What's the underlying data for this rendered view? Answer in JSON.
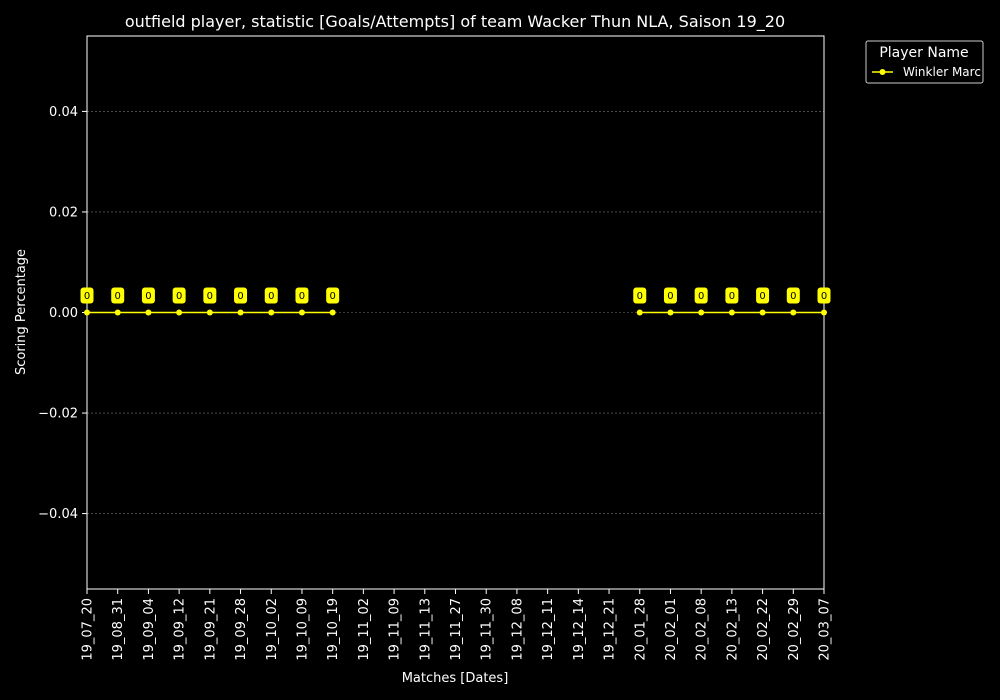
{
  "chart_data": {
    "type": "line",
    "title": "outfield player, statistic [Goals/Attempts] of team Wacker Thun NLA, Saison 19_20",
    "xlabel": "Matches [Dates]",
    "ylabel": "Scoring Percentage",
    "ylim": [
      -0.055,
      0.055
    ],
    "yticks": [
      0.04,
      0.02,
      0.0,
      -0.02,
      -0.04
    ],
    "ytick_labels": [
      "0.04",
      "0.02",
      "0.00",
      "−0.02",
      "−0.04"
    ],
    "grid": "y",
    "legend": {
      "title": "Player Name",
      "placement": "outside-top-right"
    },
    "categories": [
      "19_07_20",
      "19_08_31",
      "19_09_04",
      "19_09_12",
      "19_09_21",
      "19_09_28",
      "19_10_02",
      "19_10_09",
      "19_10_19",
      "19_11_02",
      "19_11_09",
      "19_11_13",
      "19_11_27",
      "19_11_30",
      "19_12_08",
      "19_12_11",
      "19_12_14",
      "19_12_21",
      "20_01_28",
      "20_02_01",
      "20_02_08",
      "20_02_13",
      "20_02_22",
      "20_02_29",
      "20_03_07"
    ],
    "series": [
      {
        "name": "Winkler Marc",
        "color": "#ffff00",
        "values": [
          0,
          0,
          0,
          0,
          0,
          0,
          0,
          0,
          0,
          null,
          null,
          null,
          null,
          null,
          null,
          null,
          null,
          null,
          0,
          0,
          0,
          0,
          0,
          0,
          0
        ],
        "labels": [
          "0",
          "0",
          "0",
          "0",
          "0",
          "0",
          "0",
          "0",
          "0",
          null,
          null,
          null,
          null,
          null,
          null,
          null,
          null,
          null,
          "0",
          "0",
          "0",
          "0",
          "0",
          "0",
          "0"
        ]
      }
    ]
  }
}
